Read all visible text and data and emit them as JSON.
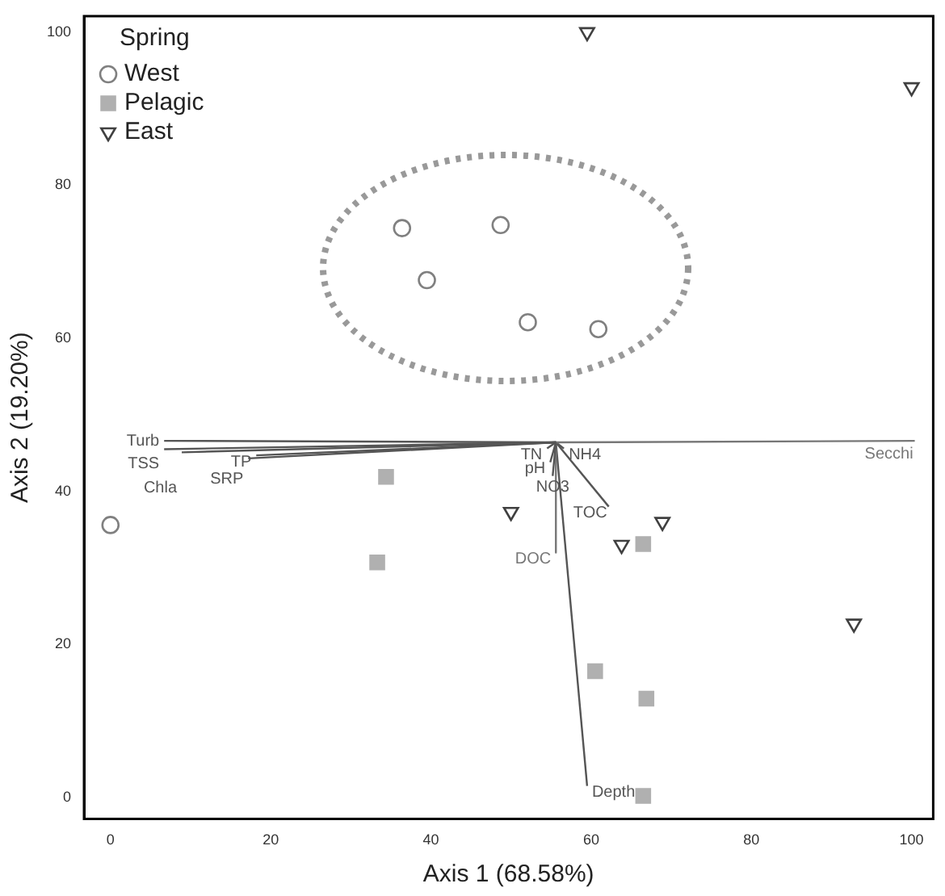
{
  "chart_data": {
    "type": "scatter",
    "xlabel": "Axis 1 (68.58%)",
    "ylabel": "Axis 2 (19.20%)",
    "legend_title": "Spring",
    "legend": "top left",
    "grid": false,
    "xlim": [
      -3.3,
      102.7
    ],
    "ylim": [
      -2.8,
      102.1
    ],
    "xticks": [
      0,
      20,
      40,
      60,
      80,
      100
    ],
    "yticks": [
      0,
      20,
      40,
      60,
      80,
      100
    ],
    "series": [
      {
        "name": "West",
        "color": "#808080",
        "marker": "circle",
        "x": [
          0,
          36.4,
          39.5,
          48.7,
          52.1,
          60.9
        ],
        "values": [
          35.6,
          74.4,
          67.6,
          74.8,
          62.1,
          61.2
        ]
      },
      {
        "name": "Pelagic",
        "color": "#b0b0b0",
        "marker": "square",
        "x": [
          34.4,
          33.3,
          66.5,
          60.5,
          66.9,
          66.5
        ],
        "values": [
          41.9,
          30.7,
          33.1,
          16.5,
          12.9,
          0.2
        ]
      },
      {
        "name": "East",
        "color": "#404040",
        "marker": "triangle",
        "x": [
          59.5,
          100,
          50,
          68.9,
          63.8,
          92.8
        ],
        "values": [
          100,
          92.8,
          37.3,
          36,
          33,
          22.7
        ]
      },
      {
        "name": "Turb",
        "type": "line",
        "marker": "none",
        "color": "#555555",
        "x": [
          55.6,
          6.7
        ],
        "values": [
          46.4,
          46.6
        ]
      },
      {
        "name": "TSS",
        "type": "line",
        "marker": "none",
        "color": "#555555",
        "x": [
          55.6,
          6.7
        ],
        "values": [
          46.4,
          45.5
        ]
      },
      {
        "name": "Chla",
        "type": "line",
        "marker": "none",
        "color": "#555555",
        "x": [
          55.6,
          8.9
        ],
        "values": [
          46.4,
          45.1
        ]
      },
      {
        "name": "TP",
        "type": "line",
        "marker": "none",
        "color": "#555555",
        "x": [
          55.6,
          18.2
        ],
        "values": [
          46.4,
          44.7
        ]
      },
      {
        "name": "SRP",
        "type": "line",
        "marker": "none",
        "color": "#555555",
        "x": [
          55.6,
          17.2
        ],
        "values": [
          46.4,
          44.3
        ]
      },
      {
        "name": "Secchi",
        "type": "line",
        "marker": "none",
        "color": "#777777",
        "x": [
          55.6,
          100.4
        ],
        "values": [
          46.4,
          46.6
        ]
      },
      {
        "name": "NH4",
        "type": "line",
        "marker": "none",
        "color": "#555555",
        "x": [
          55.6,
          56.6
        ],
        "values": [
          46.4,
          45.6
        ]
      },
      {
        "name": "TN",
        "type": "line",
        "marker": "none",
        "color": "#555555",
        "x": [
          55.6,
          54.5
        ],
        "values": [
          46.4,
          45.6
        ]
      },
      {
        "name": "pH",
        "type": "line",
        "marker": "none",
        "color": "#555555",
        "x": [
          55.6,
          54.9
        ],
        "values": [
          46.4,
          43.8
        ]
      },
      {
        "name": "NO3",
        "type": "line",
        "marker": "none",
        "color": "#555555",
        "x": [
          55.6,
          55.2
        ],
        "values": [
          46.4,
          42.0
        ]
      },
      {
        "name": "TOC",
        "type": "line",
        "marker": "none",
        "color": "#555555",
        "x": [
          55.6,
          62.2
        ],
        "values": [
          46.4,
          38
        ]
      },
      {
        "name": "DOC",
        "type": "line",
        "marker": "none",
        "color": "#777777",
        "x": [
          55.6,
          55.6
        ],
        "values": [
          46.4,
          32
        ]
      },
      {
        "name": "Depth",
        "type": "line",
        "marker": "none",
        "color": "#555555",
        "x": [
          55.6,
          59.5
        ],
        "values": [
          46.4,
          1.5
        ]
      }
    ]
  }
}
